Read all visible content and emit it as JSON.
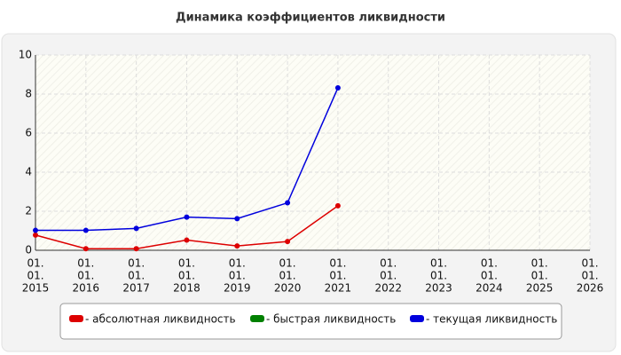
{
  "chart_data": {
    "type": "line",
    "title": "Динамика коэффициентов ликвидности",
    "categories": [
      [
        "01.",
        "01.",
        "2015"
      ],
      [
        "01.",
        "01.",
        "2016"
      ],
      [
        "01.",
        "01.",
        "2017"
      ],
      [
        "01.",
        "01.",
        "2018"
      ],
      [
        "01.",
        "01.",
        "2019"
      ],
      [
        "01.",
        "01.",
        "2020"
      ],
      [
        "01.",
        "01.",
        "2021"
      ],
      [
        "01.",
        "01.",
        "2022"
      ],
      [
        "01.",
        "01.",
        "2023"
      ],
      [
        "01.",
        "01.",
        "2024"
      ],
      [
        "01.",
        "01.",
        "2025"
      ],
      [
        "01.",
        "01.",
        "2026"
      ]
    ],
    "series": [
      {
        "name": "- абсолютная ликвидность",
        "color": "#dd0000",
        "values": [
          0.78,
          0.08,
          0.08,
          0.52,
          0.22,
          0.45,
          2.28,
          null,
          null,
          null,
          null,
          null
        ]
      },
      {
        "name": "- быстрая ликвидность",
        "color": "#008000",
        "values": [
          null,
          null,
          null,
          null,
          null,
          null,
          null,
          null,
          null,
          null,
          null,
          null
        ]
      },
      {
        "name": "- текущая ликвидность",
        "color": "#0000dd",
        "values": [
          1.02,
          1.02,
          1.12,
          1.7,
          1.62,
          2.43,
          8.32,
          null,
          null,
          null,
          null,
          null
        ]
      }
    ],
    "ylim": [
      0,
      10
    ],
    "yticks": [
      0,
      2,
      4,
      6,
      8,
      10
    ],
    "grid": true,
    "legend": "bottom"
  }
}
